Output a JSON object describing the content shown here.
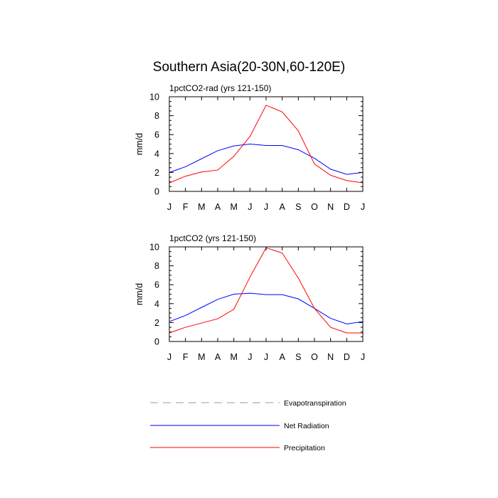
{
  "title": "Southern Asia(20-30N,60-120E)",
  "chart_data": [
    {
      "type": "line",
      "title": "1pctCO2-rad (yrs 121-150)",
      "ylabel": "mm/d",
      "xlabel": "",
      "x": [
        "J",
        "F",
        "M",
        "A",
        "M",
        "J",
        "J",
        "A",
        "S",
        "O",
        "N",
        "D",
        "J"
      ],
      "ylim": [
        0,
        10
      ],
      "yticks": [
        0,
        2,
        4,
        6,
        8,
        10
      ],
      "series": [
        {
          "name": "Net Radiation",
          "color": "#0000ff",
          "values": [
            2.0,
            2.6,
            3.45,
            4.3,
            4.8,
            5.0,
            4.85,
            4.85,
            4.4,
            3.5,
            2.35,
            1.8,
            2.0
          ]
        },
        {
          "name": "Precipitation",
          "color": "#ff0000",
          "values": [
            0.9,
            1.6,
            2.05,
            2.25,
            3.7,
            5.8,
            9.1,
            8.4,
            6.4,
            2.9,
            1.7,
            1.15,
            0.9
          ]
        }
      ]
    },
    {
      "type": "line",
      "title": "1pctCO2 (yrs 121-150)",
      "ylabel": "mm/d",
      "xlabel": "",
      "x": [
        "J",
        "F",
        "M",
        "A",
        "M",
        "J",
        "J",
        "A",
        "S",
        "O",
        "N",
        "D",
        "J"
      ],
      "ylim": [
        0,
        10
      ],
      "yticks": [
        0,
        2,
        4,
        6,
        8,
        10
      ],
      "series": [
        {
          "name": "Net Radiation",
          "color": "#0000ff",
          "values": [
            2.1,
            2.75,
            3.6,
            4.45,
            5.0,
            5.1,
            4.95,
            4.95,
            4.5,
            3.5,
            2.45,
            1.85,
            2.1
          ]
        },
        {
          "name": "Precipitation",
          "color": "#ff0000",
          "values": [
            0.9,
            1.5,
            1.95,
            2.4,
            3.4,
            6.8,
            9.9,
            9.35,
            6.7,
            3.5,
            1.5,
            0.9,
            0.9
          ]
        }
      ]
    }
  ],
  "legend": [
    {
      "label": "Evapotranspiration",
      "color": "#999999",
      "style": "dashed"
    },
    {
      "label": "Net Radiation",
      "color": "#0000ff",
      "style": "solid"
    },
    {
      "label": "Precipitation",
      "color": "#ff0000",
      "style": "solid"
    }
  ]
}
